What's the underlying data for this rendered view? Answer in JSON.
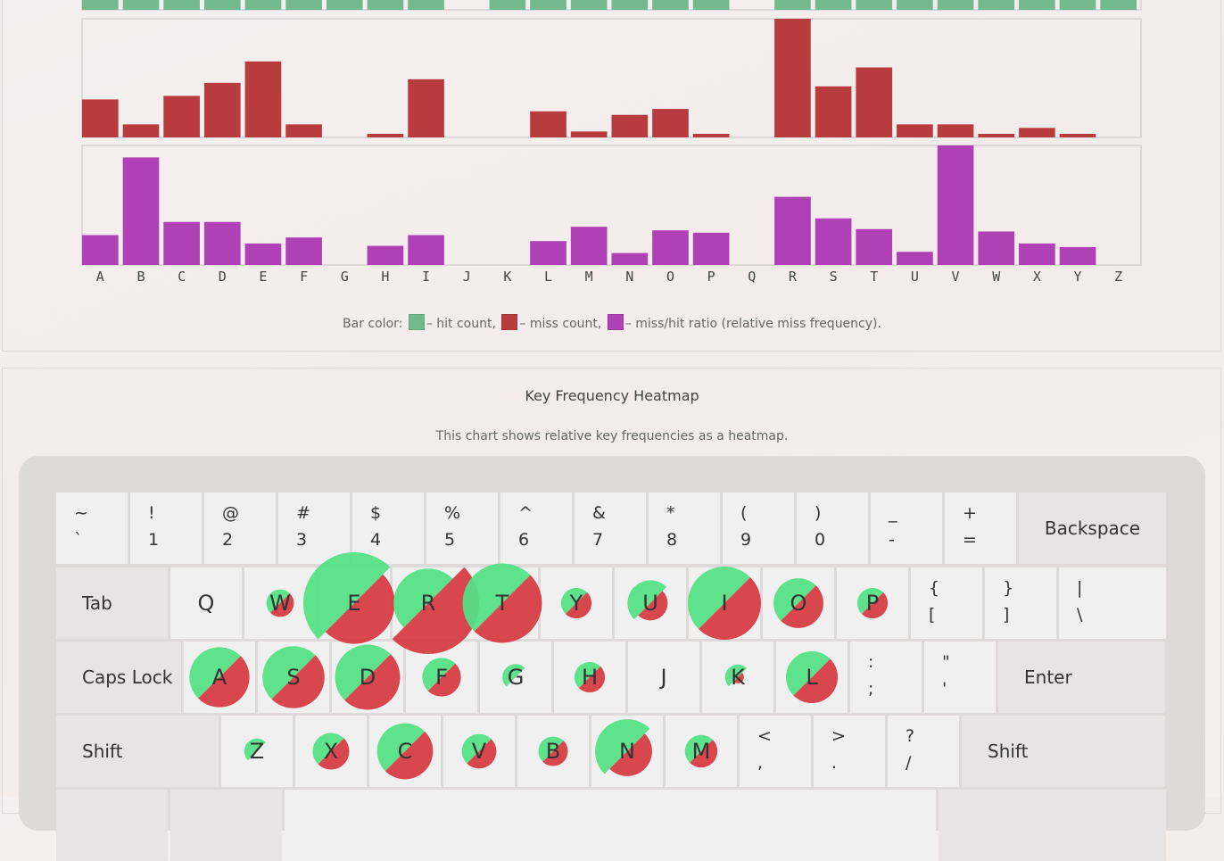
{
  "chart_data": {
    "type": "bar",
    "categories": [
      "A",
      "B",
      "C",
      "D",
      "E",
      "F",
      "G",
      "H",
      "I",
      "J",
      "K",
      "L",
      "M",
      "N",
      "O",
      "P",
      "Q",
      "R",
      "S",
      "T",
      "U",
      "V",
      "W",
      "X",
      "Y",
      "Z"
    ],
    "series": [
      {
        "name": "hit count",
        "color": "#72b98e",
        "values": [
          3,
          1,
          3,
          3,
          3,
          3,
          2,
          2,
          3,
          0,
          1,
          3,
          2,
          3,
          3,
          1,
          0,
          3,
          3,
          3,
          3,
          1,
          1,
          3,
          2,
          1
        ]
      },
      {
        "name": "miss count",
        "color": "#b83c3e",
        "values": [
          32,
          11,
          35,
          46,
          64,
          11,
          0,
          3,
          49,
          0,
          0,
          22,
          5,
          19,
          24,
          3,
          0,
          100,
          43,
          59,
          11,
          11,
          3,
          8,
          3,
          0
        ]
      },
      {
        "name": "miss/hit ratio",
        "color": "#b040b6",
        "values": [
          25,
          90,
          36,
          36,
          18,
          23,
          0,
          16,
          25,
          0,
          0,
          20,
          32,
          10,
          29,
          27,
          0,
          57,
          39,
          30,
          11,
          100,
          28,
          18,
          15,
          0
        ]
      }
    ],
    "legend": {
      "prefix": "Bar color:",
      "hit_text": "– hit count,",
      "miss_text": "– miss count,",
      "ratio_text": "– miss/hit ratio (relative miss frequency)."
    }
  },
  "heatmap": {
    "title": "Key Frequency Heatmap",
    "description": "This chart shows relative key frequencies as a heatmap.",
    "hit_color": "#55e085",
    "miss_color": "#d63c44",
    "rows": [
      [
        {
          "top": "~",
          "bottom": "`",
          "w": 80
        },
        {
          "top": "!",
          "bottom": "1",
          "w": 80
        },
        {
          "top": "@",
          "bottom": "2",
          "w": 80
        },
        {
          "top": "#",
          "bottom": "3",
          "w": 80
        },
        {
          "top": "$",
          "bottom": "4",
          "w": 80
        },
        {
          "top": "%",
          "bottom": "5",
          "w": 80
        },
        {
          "top": "^",
          "bottom": "6",
          "w": 80
        },
        {
          "top": "&",
          "bottom": "7",
          "w": 80
        },
        {
          "top": "*",
          "bottom": "8",
          "w": 80
        },
        {
          "top": "(",
          "bottom": "9",
          "w": 80
        },
        {
          "top": ")",
          "bottom": "0",
          "w": 80
        },
        {
          "top": "_",
          "bottom": "-",
          "w": 80
        },
        {
          "top": "+",
          "bottom": "=",
          "w": 80
        },
        {
          "label": "Backspace",
          "w": 165,
          "mod": true,
          "center": true
        }
      ],
      [
        {
          "label": "Tab",
          "w": 125,
          "mod": true
        },
        {
          "label": "Q",
          "w": 80,
          "freq": {
            "hit": 0,
            "miss": 0
          }
        },
        {
          "label": "W",
          "w": 80,
          "freq": {
            "hit": 0.27,
            "miss": 0.27
          }
        },
        {
          "label": "E",
          "w": 80,
          "freq": {
            "hit": 1.0,
            "miss": 0.8
          }
        },
        {
          "label": "R",
          "w": 80,
          "freq": {
            "hit": 0.68,
            "miss": 1.0
          }
        },
        {
          "label": "T",
          "w": 80,
          "freq": {
            "hit": 0.78,
            "miss": 0.78
          }
        },
        {
          "label": "Y",
          "w": 80,
          "freq": {
            "hit": 0.3,
            "miss": 0.3
          }
        },
        {
          "label": "U",
          "w": 80,
          "freq": {
            "hit": 0.45,
            "miss": 0.34
          }
        },
        {
          "label": "I",
          "w": 80,
          "freq": {
            "hit": 0.72,
            "miss": 0.72
          }
        },
        {
          "label": "O",
          "w": 80,
          "freq": {
            "hit": 0.49,
            "miss": 0.49
          }
        },
        {
          "label": "P",
          "w": 80,
          "freq": {
            "hit": 0.3,
            "miss": 0.3
          }
        },
        {
          "top": "{",
          "bottom": "[",
          "w": 80
        },
        {
          "top": "}",
          "bottom": "]",
          "w": 80
        },
        {
          "top": "|",
          "bottom": "\\",
          "w": 120
        }
      ],
      [
        {
          "label": "Caps Lock",
          "w": 140,
          "mod": true
        },
        {
          "label": "A",
          "w": 80,
          "freq": {
            "hit": 0.59,
            "miss": 0.59
          }
        },
        {
          "label": "S",
          "w": 80,
          "freq": {
            "hit": 0.61,
            "miss": 0.61
          }
        },
        {
          "label": "D",
          "w": 80,
          "freq": {
            "hit": 0.64,
            "miss": 0.64
          }
        },
        {
          "label": "F",
          "w": 80,
          "freq": {
            "hit": 0.38,
            "miss": 0.38
          }
        },
        {
          "label": "G",
          "w": 80,
          "freq": {
            "hit": 0.26,
            "miss": 0
          }
        },
        {
          "label": "H",
          "w": 80,
          "freq": {
            "hit": 0.3,
            "miss": 0.3
          }
        },
        {
          "label": "J",
          "w": 80,
          "freq": {
            "hit": 0,
            "miss": 0
          }
        },
        {
          "label": "K",
          "w": 80,
          "freq": {
            "hit": 0.25,
            "miss": 0.12
          }
        },
        {
          "label": "L",
          "w": 80,
          "freq": {
            "hit": 0.51,
            "miss": 0.51
          }
        },
        {
          "top": ":",
          "bottom": ";",
          "w": 80
        },
        {
          "top": "\"",
          "bottom": "'",
          "w": 80
        },
        {
          "label": "Enter",
          "w": 187,
          "mod": true
        }
      ],
      [
        {
          "label": "Shift",
          "w": 182,
          "mod": true
        },
        {
          "label": "Z",
          "w": 80,
          "freq": {
            "hit": 0.25,
            "miss": 0
          }
        },
        {
          "label": "X",
          "w": 80,
          "freq": {
            "hit": 0.36,
            "miss": 0.36
          }
        },
        {
          "label": "C",
          "w": 80,
          "freq": {
            "hit": 0.55,
            "miss": 0.55
          }
        },
        {
          "label": "V",
          "w": 80,
          "freq": {
            "hit": 0.34,
            "miss": 0.34
          }
        },
        {
          "label": "B",
          "w": 80,
          "freq": {
            "hit": 0.29,
            "miss": 0.29
          }
        },
        {
          "label": "N",
          "w": 80,
          "freq": {
            "hit": 0.63,
            "miss": 0.49
          }
        },
        {
          "label": "M",
          "w": 80,
          "freq": {
            "hit": 0.32,
            "miss": 0.32
          }
        },
        {
          "top": "<",
          "bottom": ",",
          "w": 80
        },
        {
          "top": ">",
          "bottom": ".",
          "w": 80
        },
        {
          "top": "?",
          "bottom": "/",
          "w": 80
        },
        {
          "label": "Shift",
          "w": 228,
          "mod": true
        }
      ],
      [
        {
          "label": "",
          "w": 125,
          "mod": true
        },
        {
          "label": "",
          "w": 125,
          "mod": true
        },
        {
          "label": "",
          "w": 730
        },
        {
          "label": "",
          "w": 255,
          "mod": true
        }
      ]
    ]
  }
}
